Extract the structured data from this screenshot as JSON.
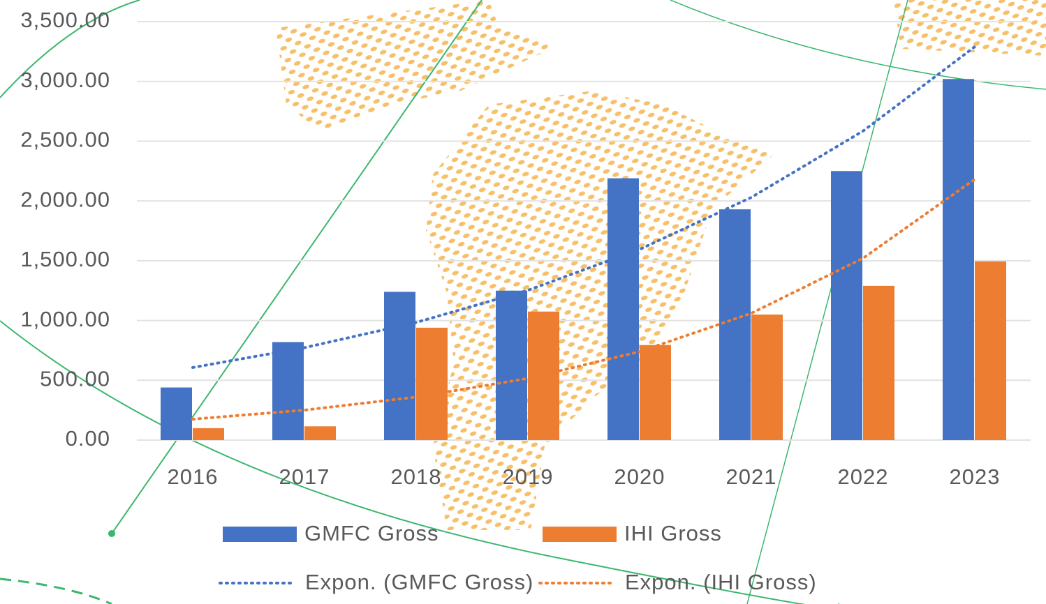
{
  "chart_data": {
    "type": "bar",
    "categories": [
      "2016",
      "2017",
      "2018",
      "2019",
      "2020",
      "2021",
      "2022",
      "2023"
    ],
    "series": [
      {
        "name": "GMFC Gross",
        "color": "#4472c4",
        "values": [
          440,
          820,
          1240,
          1250,
          2190,
          1930,
          2250,
          3020
        ]
      },
      {
        "name": "IHI Gross",
        "color": "#ed7d31",
        "values": [
          100,
          115,
          940,
          1075,
          795,
          1050,
          1290,
          1495
        ]
      }
    ],
    "trendlines": [
      {
        "name": "Expon. (GMFC Gross)",
        "color": "#4472c4",
        "values": [
          607,
          773,
          984,
          1253,
          1595,
          2030,
          2585,
          3290
        ]
      },
      {
        "name": "Expon. (IHI Gross)",
        "color": "#ed7d31",
        "values": [
          175,
          251,
          360,
          516,
          740,
          1061,
          1521,
          2182
        ]
      }
    ],
    "ylim": [
      0,
      3500
    ],
    "yticks": [
      {
        "value": 0,
        "label": "0.00"
      },
      {
        "value": 500,
        "label": "500.00"
      },
      {
        "value": 1000,
        "label": "1,000.00"
      },
      {
        "value": 1500,
        "label": "1,500.00"
      },
      {
        "value": 2000,
        "label": "2,000.00"
      },
      {
        "value": 2500,
        "label": "2,500.00"
      },
      {
        "value": 3000,
        "label": "3,000.00"
      },
      {
        "value": 3500,
        "label": "3,500.00"
      }
    ],
    "grid": true
  }
}
